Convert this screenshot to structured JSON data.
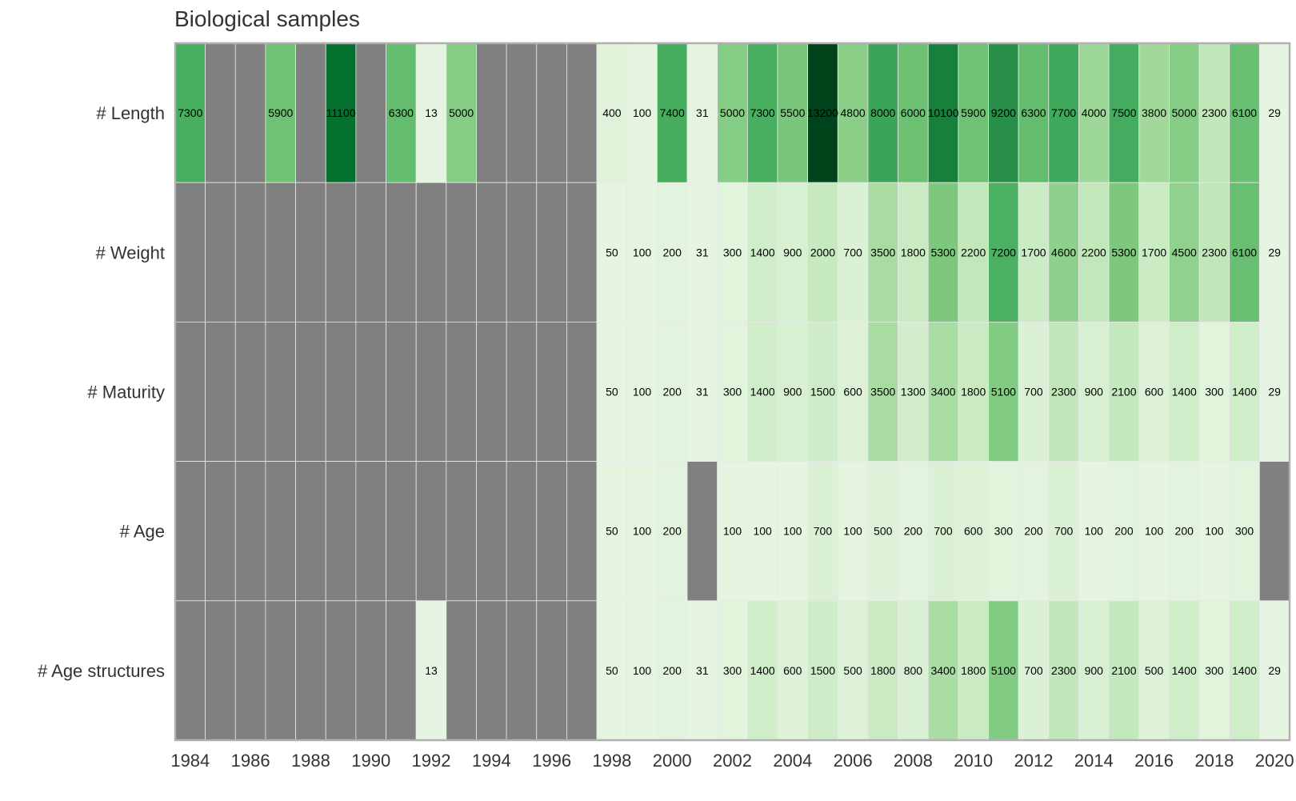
{
  "chart_data": {
    "type": "heatmap",
    "title": "Biological samples",
    "xlabel": "",
    "ylabel": "",
    "years": [
      1984,
      1985,
      1986,
      1987,
      1988,
      1989,
      1990,
      1991,
      1992,
      1993,
      1994,
      1995,
      1996,
      1997,
      1998,
      1999,
      2000,
      2001,
      2002,
      2003,
      2004,
      2005,
      2006,
      2007,
      2008,
      2009,
      2010,
      2011,
      2012,
      2013,
      2014,
      2015,
      2016,
      2017,
      2018,
      2019,
      2020
    ],
    "x_tick_labels": [
      "1984",
      "1986",
      "1988",
      "1990",
      "1992",
      "1994",
      "1996",
      "1998",
      "2000",
      "2002",
      "2004",
      "2006",
      "2008",
      "2010",
      "2012",
      "2014",
      "2016",
      "2018",
      "2020"
    ],
    "rows": [
      {
        "name": "# Length",
        "values": [
          7300,
          null,
          null,
          5900,
          null,
          11100,
          null,
          6300,
          13,
          5000,
          null,
          null,
          null,
          null,
          400,
          100,
          7400,
          31,
          5000,
          7300,
          5500,
          13200,
          4800,
          8000,
          6000,
          10100,
          5900,
          9200,
          6300,
          7700,
          4000,
          7500,
          3800,
          5000,
          2300,
          6100,
          29
        ]
      },
      {
        "name": "# Weight",
        "values": [
          null,
          null,
          null,
          null,
          null,
          null,
          null,
          null,
          null,
          null,
          null,
          null,
          null,
          null,
          50,
          100,
          200,
          31,
          300,
          1400,
          900,
          2000,
          700,
          3500,
          1800,
          5300,
          2200,
          7200,
          1700,
          4600,
          2200,
          5300,
          1700,
          4500,
          2300,
          6100,
          29
        ]
      },
      {
        "name": "# Maturity",
        "values": [
          null,
          null,
          null,
          null,
          null,
          null,
          null,
          null,
          null,
          null,
          null,
          null,
          null,
          null,
          50,
          100,
          200,
          31,
          300,
          1400,
          900,
          1500,
          600,
          3500,
          1300,
          3400,
          1800,
          5100,
          700,
          2300,
          900,
          2100,
          600,
          1400,
          300,
          1400,
          29
        ]
      },
      {
        "name": "# Age",
        "values": [
          null,
          null,
          null,
          null,
          null,
          null,
          null,
          null,
          null,
          null,
          null,
          null,
          null,
          null,
          50,
          100,
          200,
          null,
          100,
          100,
          100,
          700,
          100,
          500,
          200,
          700,
          600,
          300,
          200,
          700,
          100,
          200,
          100,
          200,
          100,
          300,
          null
        ]
      },
      {
        "name": "# Age structures",
        "values": [
          null,
          null,
          null,
          null,
          null,
          null,
          null,
          null,
          13,
          null,
          null,
          null,
          null,
          null,
          50,
          100,
          200,
          31,
          300,
          1400,
          600,
          1500,
          500,
          1800,
          800,
          3400,
          1800,
          5100,
          700,
          2300,
          900,
          2100,
          500,
          1400,
          300,
          1400,
          29
        ]
      }
    ],
    "colormap": "Greens",
    "missing_color": "#808080",
    "grid": false,
    "legend": "none"
  }
}
